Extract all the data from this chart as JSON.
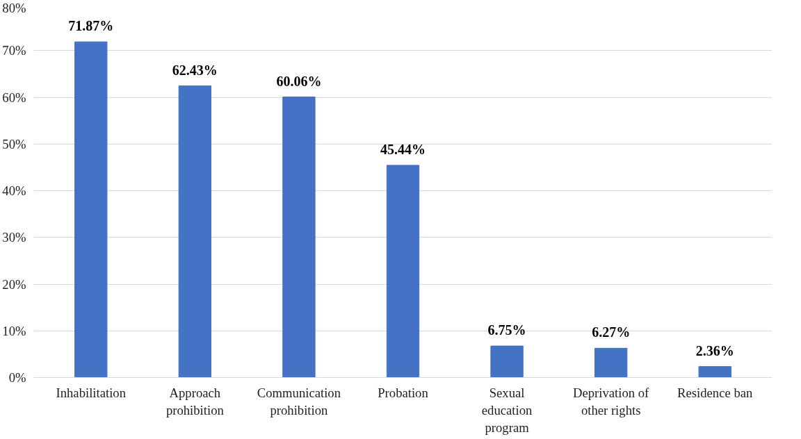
{
  "chart_data": {
    "type": "bar",
    "categories": [
      "Inhabilitation",
      "Approach prohibition",
      "Communication prohibition",
      "Probation",
      "Sexual education program",
      "Deprivation of other rights",
      "Residence ban"
    ],
    "values": [
      71.87,
      62.43,
      60.06,
      45.44,
      6.75,
      6.27,
      2.36
    ],
    "value_labels": [
      "71.87%",
      "62.43%",
      "60.06%",
      "45.44%",
      "6.75%",
      "6.27%",
      "2.36%"
    ],
    "color": "#4472c4",
    "ylim": [
      0,
      80
    ],
    "yticks": [
      {
        "value": 0,
        "label": "0%"
      },
      {
        "value": 10,
        "label": "10%"
      },
      {
        "value": 20,
        "label": "20%"
      },
      {
        "value": 30,
        "label": "30%"
      },
      {
        "value": 40,
        "label": "40%"
      },
      {
        "value": 50,
        "label": "50%"
      },
      {
        "value": 60,
        "label": "60%"
      },
      {
        "value": 70,
        "label": "70%"
      },
      {
        "value": 80,
        "label": "80%"
      }
    ],
    "grid": "y"
  }
}
